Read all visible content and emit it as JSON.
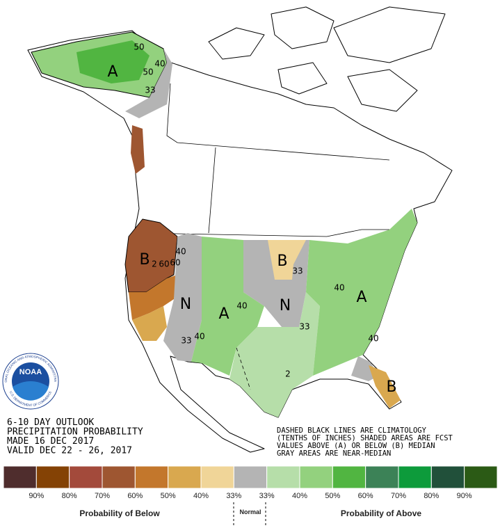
{
  "header": {
    "lines": [
      "6-10 DAY OUTLOOK",
      "PRECIPITATION PROBABILITY",
      "MADE  16 DEC 2017",
      "VALID  DEC 22 - 26, 2017"
    ]
  },
  "note": {
    "lines": [
      "DASHED BLACK LINES ARE CLIMATOLOGY",
      "(TENTHS OF INCHES) SHADED AREAS ARE FCST",
      "VALUES ABOVE (A) OR BELOW (B) MEDIAN",
      "GRAY AREAS ARE NEAR-MEDIAN"
    ]
  },
  "logo": {
    "name": "NOAA",
    "agency": "NATIONAL OCEANIC AND ATMOSPHERIC ADMINISTRATION",
    "department": "U.S. DEPARTMENT OF COMMERCE"
  },
  "map": {
    "labels": [
      "A",
      "50",
      "40",
      "50",
      "33",
      "B",
      "2",
      "60",
      "40",
      "60",
      "N",
      "A",
      "40",
      "33",
      "40",
      "B",
      "33",
      "N",
      "33",
      "40",
      "A",
      "40",
      "B",
      "2"
    ]
  },
  "legend": {
    "colors": [
      "#4f2d2d",
      "#844205",
      "#a34a3b",
      "#9e5631",
      "#c3772c",
      "#d9a84f",
      "#f0d598",
      "#b4b4b4",
      "#b6dea9",
      "#93d17e",
      "#51b541",
      "#3c8257",
      "#0d9b3b",
      "#21503a",
      "#2b5a15"
    ],
    "ticks": [
      "90%",
      "80%",
      "70%",
      "60%",
      "50%",
      "40%",
      "33%",
      "33%",
      "40%",
      "50%",
      "60%",
      "70%",
      "80%",
      "90%"
    ],
    "below_label": "Probability of Below",
    "normal_label": "Normal",
    "above_label": "Probability of Above"
  }
}
